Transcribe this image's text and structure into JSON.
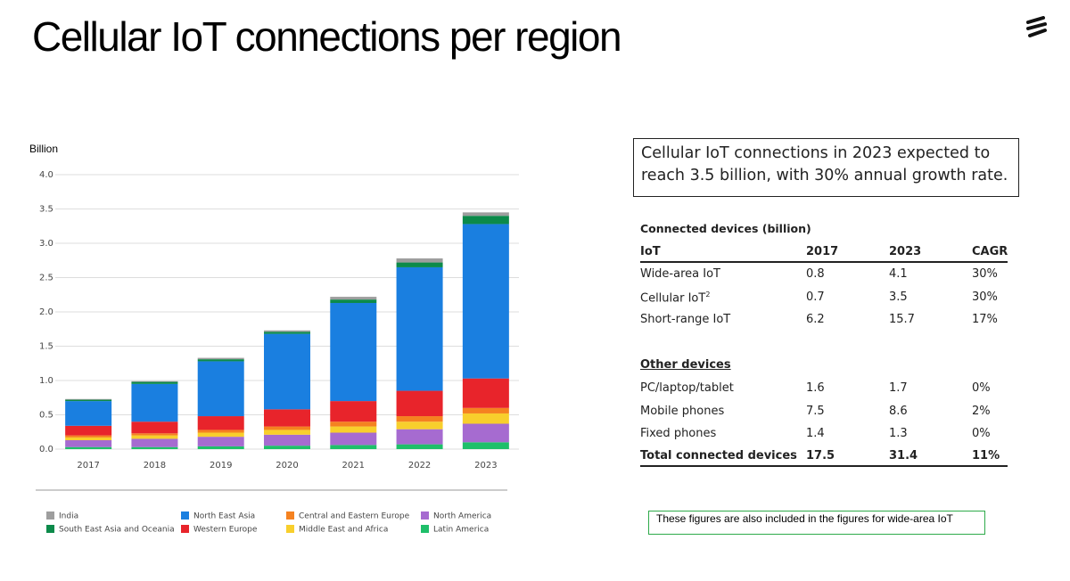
{
  "header": {
    "title": "Cellular IoT connections per region"
  },
  "chart_data": {
    "type": "stacked_bar",
    "y_label": "Billion",
    "categories": [
      "2017",
      "2018",
      "2019",
      "2020",
      "2021",
      "2022",
      "2023"
    ],
    "series": [
      {
        "name": "India",
        "color": "#9e9e9e",
        "values": [
          0.01,
          0.01,
          0.02,
          0.02,
          0.04,
          0.06,
          0.05
        ]
      },
      {
        "name": "South East Asia and Oceania",
        "color": "#0c8a4a",
        "values": [
          0.02,
          0.03,
          0.03,
          0.03,
          0.05,
          0.07,
          0.12
        ]
      },
      {
        "name": "North East Asia",
        "color": "#1a7fe0",
        "values": [
          0.36,
          0.55,
          0.8,
          1.1,
          1.43,
          1.8,
          2.25
        ]
      },
      {
        "name": "Western Europe",
        "color": "#e8242b",
        "values": [
          0.14,
          0.17,
          0.2,
          0.25,
          0.3,
          0.37,
          0.43
        ]
      },
      {
        "name": "Central and Eastern Europe",
        "color": "#f58220",
        "values": [
          0.03,
          0.03,
          0.04,
          0.05,
          0.07,
          0.08,
          0.08
        ]
      },
      {
        "name": "Middle East and Africa",
        "color": "#f8cf2c",
        "values": [
          0.04,
          0.05,
          0.06,
          0.07,
          0.09,
          0.11,
          0.15
        ]
      },
      {
        "name": "North America",
        "color": "#a66bd0",
        "values": [
          0.1,
          0.12,
          0.14,
          0.16,
          0.18,
          0.22,
          0.27
        ]
      },
      {
        "name": "Latin America",
        "color": "#1fbf6a",
        "values": [
          0.03,
          0.03,
          0.04,
          0.05,
          0.06,
          0.07,
          0.1
        ]
      }
    ],
    "ylim": [
      0,
      4
    ],
    "yticks": [
      {
        "value": 0,
        "label": "0.0"
      },
      0.5,
      {
        "value": 1,
        "label": "1.0"
      },
      1.5,
      {
        "value": 2,
        "label": "2.0"
      },
      2.5,
      {
        "value": 3,
        "label": "3.0"
      },
      3.5,
      {
        "value": 4,
        "label": "4.0"
      }
    ],
    "grid": true
  },
  "callout": "Cellular IoT connections in 2023 expected to reach 3.5 billion, with 30% annual growth rate.",
  "table": {
    "caption": "Connected devices (billion)",
    "columns": [
      "IoT",
      "2017",
      "2023",
      "CAGR"
    ],
    "rows": [
      [
        "Wide-area IoT",
        "0.8",
        "4.1",
        "30%"
      ],
      [
        "Cellular IoT",
        "0.7",
        "3.5",
        "30%"
      ],
      [
        "Short-range IoT",
        "6.2",
        "15.7",
        "17%"
      ]
    ],
    "row_note": "2",
    "group2": "Other devices",
    "rows2": [
      [
        "PC/laptop/tablet",
        "1.6",
        "1.7",
        "0%"
      ],
      [
        "Mobile phones",
        "7.5",
        "8.6",
        "2%"
      ],
      [
        "Fixed phones",
        "1.4",
        "1.3",
        "0%"
      ]
    ],
    "total": [
      "Total connected devices",
      "17.5",
      "31.4",
      "11%"
    ]
  },
  "footnote": "These figures are also included in the figures for wide-area IoT"
}
